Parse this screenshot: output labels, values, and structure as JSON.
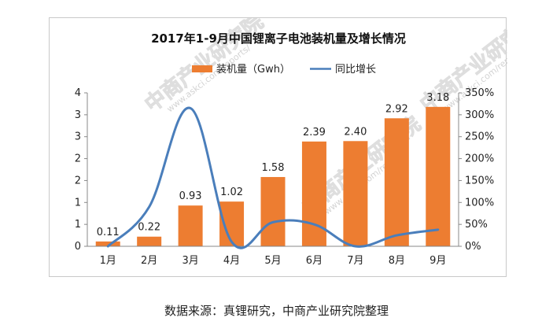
{
  "chart_data": {
    "type": "bar",
    "title": "2017年1-9月中国锂离子电池装机量及增长情况",
    "categories": [
      "1月",
      "2月",
      "3月",
      "4月",
      "5月",
      "6月",
      "7月",
      "8月",
      "9月"
    ],
    "series": [
      {
        "name": "装机量（Gwh）",
        "type": "bar",
        "axis": "left",
        "values": [
          0.11,
          0.22,
          0.93,
          1.02,
          1.58,
          2.39,
          2.4,
          2.92,
          3.18
        ],
        "labels": [
          "0.11",
          "0.22",
          "0.93",
          "1.02",
          "1.58",
          "2.39",
          "2.40",
          "2.92",
          "3.18"
        ],
        "color": "#ED7D31"
      },
      {
        "name": "同比增长",
        "type": "line",
        "axis": "right",
        "values": [
          0,
          90,
          315,
          10,
          55,
          50,
          0,
          25,
          38
        ],
        "color": "#4A7EBB"
      }
    ],
    "y_left_ticks": [
      "0",
      "1",
      "1",
      "2",
      "2",
      "3",
      "3",
      "4"
    ],
    "y_right_ticks": [
      "0%",
      "50%",
      "100%",
      "150%",
      "200%",
      "250%",
      "300%",
      "350%"
    ],
    "ylim_left": [
      0,
      3.5
    ],
    "ylim_right": [
      0,
      350
    ],
    "legend_position": "top",
    "grid": false
  },
  "watermark": {
    "text": "中商产业研究院",
    "url": "www.askci.com/reports/"
  },
  "source_note": "数据来源：真锂研究，中商产业研究院整理"
}
